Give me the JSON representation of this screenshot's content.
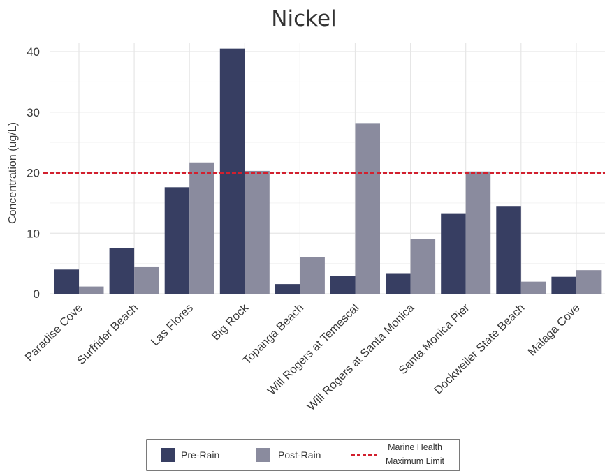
{
  "chart_data": {
    "type": "bar",
    "title": "Nickel",
    "xlabel": "",
    "ylabel": "Concentration (ug/L)",
    "ylim": [
      0,
      42
    ],
    "yticks": [
      0,
      10,
      20,
      30,
      40
    ],
    "grid": true,
    "legend_position": "bottom",
    "categories": [
      "Paradise Cove",
      "Surfrider Beach",
      "Las Flores",
      "Big Rock",
      "Topanga Beach",
      "Will Rogers at Temescal",
      "Will Rogers at Santa Monica",
      "Santa Monica Pier",
      "Dockweiler State Beach",
      "Malaga Cove"
    ],
    "series": [
      {
        "name": "Pre-Rain",
        "color": "#373e62",
        "values": [
          4.0,
          7.5,
          17.6,
          40.5,
          1.6,
          2.9,
          3.4,
          13.3,
          14.5,
          2.8
        ]
      },
      {
        "name": "Post-Rain",
        "color": "#8a8b9e",
        "values": [
          1.2,
          4.5,
          21.7,
          20.3,
          6.1,
          28.2,
          9.0,
          20.2,
          2.0,
          3.9
        ]
      }
    ],
    "reference_line": {
      "value": 20,
      "label_line1": "Marine Health",
      "label_line2": "Maximum Limit",
      "color": "#d2202e",
      "style": "dashed"
    }
  }
}
